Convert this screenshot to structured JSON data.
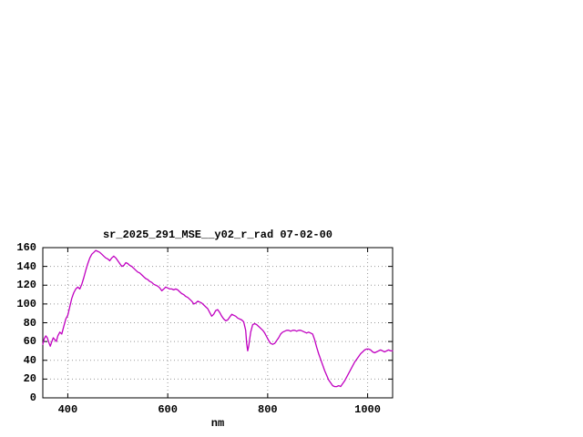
{
  "window": {
    "background": "#ffffff"
  },
  "chart_data": {
    "type": "line",
    "title": "sr_2025_291_MSE__y02_r_rad 07-02-00",
    "xlabel": "nm",
    "ylabel": "",
    "xlim": [
      350,
      1050
    ],
    "ylim": [
      0,
      160
    ],
    "x_ticks": [
      400,
      600,
      800,
      1000
    ],
    "y_ticks": [
      0,
      20,
      40,
      60,
      80,
      100,
      120,
      140,
      160
    ],
    "grid": true,
    "legend_position": "none",
    "colors": {
      "line": "#c000c0",
      "border": "#000000",
      "grid": "#999999",
      "text": "#000000"
    },
    "series": [
      {
        "name": "sr_2025_291_MSE__y02_r_rad",
        "points": [
          [
            350,
            57
          ],
          [
            353,
            63
          ],
          [
            356,
            66
          ],
          [
            359,
            64
          ],
          [
            362,
            59
          ],
          [
            365,
            55
          ],
          [
            368,
            60
          ],
          [
            371,
            64
          ],
          [
            374,
            62
          ],
          [
            377,
            60
          ],
          [
            380,
            66
          ],
          [
            384,
            70
          ],
          [
            388,
            68
          ],
          [
            392,
            76
          ],
          [
            396,
            84
          ],
          [
            400,
            88
          ],
          [
            404,
            97
          ],
          [
            408,
            106
          ],
          [
            412,
            112
          ],
          [
            416,
            116
          ],
          [
            420,
            118
          ],
          [
            424,
            116
          ],
          [
            428,
            121
          ],
          [
            432,
            128
          ],
          [
            436,
            136
          ],
          [
            440,
            143
          ],
          [
            444,
            149
          ],
          [
            448,
            153
          ],
          [
            452,
            155
          ],
          [
            456,
            157
          ],
          [
            460,
            156
          ],
          [
            464,
            155
          ],
          [
            468,
            153
          ],
          [
            472,
            151
          ],
          [
            476,
            149
          ],
          [
            480,
            148
          ],
          [
            484,
            146
          ],
          [
            488,
            149
          ],
          [
            492,
            151
          ],
          [
            496,
            149
          ],
          [
            500,
            146
          ],
          [
            504,
            143
          ],
          [
            508,
            140
          ],
          [
            512,
            141
          ],
          [
            516,
            144
          ],
          [
            520,
            143
          ],
          [
            524,
            141
          ],
          [
            528,
            140
          ],
          [
            532,
            138
          ],
          [
            536,
            136
          ],
          [
            540,
            134
          ],
          [
            544,
            133
          ],
          [
            548,
            131
          ],
          [
            552,
            129
          ],
          [
            556,
            127
          ],
          [
            560,
            126
          ],
          [
            564,
            124
          ],
          [
            568,
            123
          ],
          [
            572,
            121
          ],
          [
            576,
            120
          ],
          [
            580,
            119
          ],
          [
            584,
            117
          ],
          [
            588,
            114
          ],
          [
            592,
            116
          ],
          [
            596,
            118
          ],
          [
            600,
            117
          ],
          [
            604,
            116
          ],
          [
            608,
            116
          ],
          [
            612,
            115
          ],
          [
            616,
            116
          ],
          [
            620,
            115
          ],
          [
            624,
            113
          ],
          [
            628,
            111
          ],
          [
            632,
            110
          ],
          [
            636,
            108
          ],
          [
            640,
            107
          ],
          [
            644,
            105
          ],
          [
            648,
            103
          ],
          [
            652,
            100
          ],
          [
            656,
            101
          ],
          [
            660,
            103
          ],
          [
            664,
            102
          ],
          [
            668,
            101
          ],
          [
            672,
            99
          ],
          [
            676,
            97
          ],
          [
            680,
            95
          ],
          [
            684,
            91
          ],
          [
            688,
            87
          ],
          [
            692,
            89
          ],
          [
            696,
            93
          ],
          [
            700,
            94
          ],
          [
            704,
            91
          ],
          [
            708,
            87
          ],
          [
            712,
            84
          ],
          [
            716,
            82
          ],
          [
            720,
            83
          ],
          [
            724,
            86
          ],
          [
            728,
            89
          ],
          [
            732,
            88
          ],
          [
            736,
            87
          ],
          [
            740,
            85
          ],
          [
            744,
            84
          ],
          [
            748,
            83
          ],
          [
            752,
            81
          ],
          [
            756,
            72
          ],
          [
            758,
            58
          ],
          [
            760,
            50
          ],
          [
            762,
            55
          ],
          [
            766,
            70
          ],
          [
            770,
            78
          ],
          [
            774,
            79
          ],
          [
            778,
            78
          ],
          [
            782,
            76
          ],
          [
            786,
            74
          ],
          [
            790,
            72
          ],
          [
            794,
            69
          ],
          [
            798,
            65
          ],
          [
            802,
            61
          ],
          [
            806,
            58
          ],
          [
            810,
            57
          ],
          [
            814,
            58
          ],
          [
            818,
            61
          ],
          [
            822,
            64
          ],
          [
            826,
            68
          ],
          [
            830,
            70
          ],
          [
            834,
            71
          ],
          [
            838,
            72
          ],
          [
            842,
            72
          ],
          [
            846,
            71
          ],
          [
            850,
            72
          ],
          [
            854,
            72
          ],
          [
            858,
            71
          ],
          [
            862,
            72
          ],
          [
            866,
            72
          ],
          [
            870,
            71
          ],
          [
            874,
            70
          ],
          [
            878,
            69
          ],
          [
            882,
            70
          ],
          [
            886,
            69
          ],
          [
            890,
            68
          ],
          [
            894,
            62
          ],
          [
            898,
            54
          ],
          [
            902,
            47
          ],
          [
            906,
            41
          ],
          [
            910,
            35
          ],
          [
            914,
            29
          ],
          [
            918,
            24
          ],
          [
            922,
            19
          ],
          [
            926,
            16
          ],
          [
            930,
            13
          ],
          [
            934,
            12
          ],
          [
            938,
            12
          ],
          [
            942,
            13
          ],
          [
            946,
            12
          ],
          [
            950,
            15
          ],
          [
            954,
            18
          ],
          [
            958,
            22
          ],
          [
            962,
            26
          ],
          [
            966,
            30
          ],
          [
            970,
            34
          ],
          [
            974,
            38
          ],
          [
            978,
            41
          ],
          [
            982,
            44
          ],
          [
            986,
            47
          ],
          [
            990,
            49
          ],
          [
            994,
            51
          ],
          [
            998,
            52
          ],
          [
            1002,
            52
          ],
          [
            1006,
            51
          ],
          [
            1010,
            49
          ],
          [
            1014,
            48
          ],
          [
            1018,
            49
          ],
          [
            1022,
            50
          ],
          [
            1026,
            51
          ],
          [
            1030,
            50
          ],
          [
            1034,
            49
          ],
          [
            1038,
            50
          ],
          [
            1042,
            51
          ],
          [
            1046,
            50
          ],
          [
            1050,
            50
          ]
        ]
      }
    ]
  }
}
